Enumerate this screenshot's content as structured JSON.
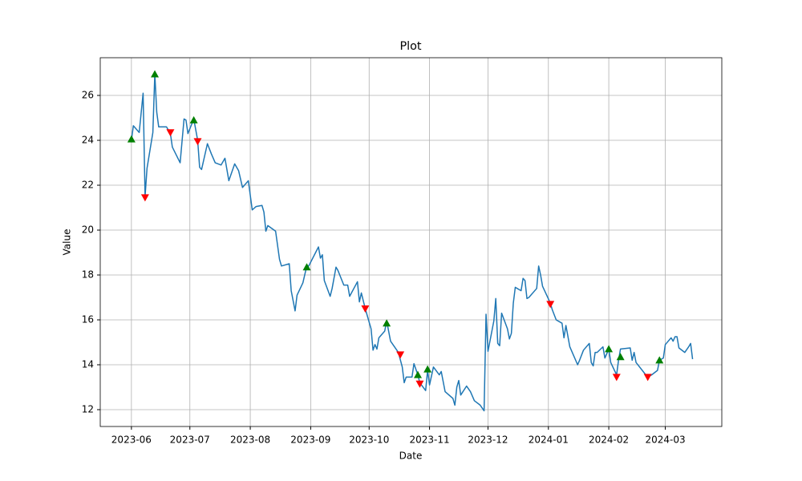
{
  "chart_data": {
    "type": "line",
    "title": "Plot",
    "xlabel": "Date",
    "ylabel": "Value",
    "grid": true,
    "x": [
      "2023-06-01",
      "2023-06-02",
      "2023-06-05",
      "2023-06-07",
      "2023-06-08",
      "2023-06-09",
      "2023-06-12",
      "2023-06-13",
      "2023-06-14",
      "2023-06-15",
      "2023-06-19",
      "2023-06-21",
      "2023-06-22",
      "2023-06-26",
      "2023-06-28",
      "2023-06-29",
      "2023-06-30",
      "2023-07-03",
      "2023-07-05",
      "2023-07-06",
      "2023-07-07",
      "2023-07-10",
      "2023-07-12",
      "2023-07-14",
      "2023-07-17",
      "2023-07-19",
      "2023-07-21",
      "2023-07-24",
      "2023-07-26",
      "2023-07-28",
      "2023-07-31",
      "2023-08-02",
      "2023-08-04",
      "2023-08-07",
      "2023-08-08",
      "2023-08-09",
      "2023-08-10",
      "2023-08-14",
      "2023-08-16",
      "2023-08-17",
      "2023-08-21",
      "2023-08-22",
      "2023-08-24",
      "2023-08-25",
      "2023-08-28",
      "2023-08-30",
      "2023-08-31",
      "2023-09-05",
      "2023-09-06",
      "2023-09-07",
      "2023-09-08",
      "2023-09-11",
      "2023-09-12",
      "2023-09-14",
      "2023-09-15",
      "2023-09-18",
      "2023-09-20",
      "2023-09-21",
      "2023-09-25",
      "2023-09-26",
      "2023-09-27",
      "2023-09-29",
      "2023-10-02",
      "2023-10-03",
      "2023-10-04",
      "2023-10-05",
      "2023-10-06",
      "2023-10-09",
      "2023-10-10",
      "2023-10-12",
      "2023-10-16",
      "2023-10-18",
      "2023-10-19",
      "2023-10-20",
      "2023-10-23",
      "2023-10-24",
      "2023-10-26",
      "2023-10-27",
      "2023-10-30",
      "2023-10-31",
      "2023-11-01",
      "2023-11-03",
      "2023-11-06",
      "2023-11-07",
      "2023-11-09",
      "2023-11-13",
      "2023-11-14",
      "2023-11-15",
      "2023-11-16",
      "2023-11-17",
      "2023-11-20",
      "2023-11-22",
      "2023-11-24",
      "2023-11-27",
      "2023-11-29",
      "2023-11-30",
      "2023-12-01",
      "2023-12-04",
      "2023-12-05",
      "2023-12-06",
      "2023-12-07",
      "2023-12-08",
      "2023-12-11",
      "2023-12-12",
      "2023-12-13",
      "2023-12-14",
      "2023-12-15",
      "2023-12-18",
      "2023-12-19",
      "2023-12-20",
      "2023-12-21",
      "2023-12-22",
      "2023-12-26",
      "2023-12-27",
      "2023-12-28",
      "2023-12-29",
      "2024-01-02",
      "2024-01-03",
      "2024-01-05",
      "2024-01-08",
      "2024-01-09",
      "2024-01-10",
      "2024-01-12",
      "2024-01-16",
      "2024-01-17",
      "2024-01-19",
      "2024-01-22",
      "2024-01-23",
      "2024-01-24",
      "2024-01-25",
      "2024-01-26",
      "2024-01-29",
      "2024-01-30",
      "2024-02-01",
      "2024-02-02",
      "2024-02-05",
      "2024-02-06",
      "2024-02-07",
      "2024-02-12",
      "2024-02-13",
      "2024-02-14",
      "2024-02-15",
      "2024-02-20",
      "2024-02-21",
      "2024-02-23",
      "2024-02-26",
      "2024-02-27",
      "2024-02-29",
      "2024-03-01",
      "2024-03-04",
      "2024-03-05",
      "2024-03-06",
      "2024-03-07",
      "2024-03-08",
      "2024-03-11",
      "2024-03-13",
      "2024-03-14",
      "2024-03-15"
    ],
    "series": [
      {
        "type": "line",
        "color": "#1f77b4",
        "values": [
          24.0,
          24.65,
          24.35,
          26.1,
          21.5,
          22.75,
          24.35,
          26.95,
          25.25,
          24.6,
          24.6,
          24.3,
          23.7,
          23.0,
          24.95,
          24.9,
          24.3,
          24.95,
          24.0,
          22.8,
          22.7,
          23.85,
          23.4,
          23.0,
          22.9,
          23.2,
          22.2,
          22.95,
          22.65,
          21.9,
          22.2,
          20.9,
          21.05,
          21.1,
          20.8,
          19.95,
          20.2,
          19.95,
          18.7,
          18.4,
          18.5,
          17.3,
          16.4,
          17.1,
          17.65,
          18.4,
          18.4,
          19.25,
          18.75,
          18.9,
          17.75,
          17.05,
          17.4,
          18.35,
          18.2,
          17.55,
          17.55,
          17.05,
          17.7,
          16.8,
          17.2,
          16.5,
          15.6,
          14.65,
          14.9,
          14.7,
          15.2,
          15.5,
          15.95,
          15.05,
          14.55,
          13.9,
          13.2,
          13.45,
          13.45,
          14.05,
          13.55,
          13.2,
          12.85,
          13.75,
          13.1,
          13.9,
          13.55,
          13.7,
          12.8,
          12.5,
          12.2,
          13.0,
          13.3,
          12.65,
          13.05,
          12.8,
          12.4,
          12.2,
          11.95,
          16.25,
          14.6,
          15.95,
          16.95,
          14.95,
          14.85,
          16.3,
          15.6,
          15.15,
          15.4,
          16.75,
          17.45,
          17.3,
          17.85,
          17.75,
          16.95,
          17.0,
          17.4,
          18.4,
          18.0,
          17.5,
          16.75,
          16.45,
          16.0,
          15.85,
          15.2,
          15.75,
          14.8,
          14.0,
          14.2,
          14.65,
          14.95,
          14.1,
          13.95,
          14.55,
          14.55,
          14.8,
          14.3,
          14.7,
          14.1,
          13.55,
          14.2,
          14.7,
          14.75,
          14.2,
          14.55,
          14.1,
          13.55,
          13.45,
          13.55,
          13.75,
          14.2,
          14.3,
          14.9,
          15.2,
          15.05,
          15.25,
          15.25,
          14.75,
          14.55,
          14.8,
          14.95,
          14.25
        ]
      },
      {
        "type": "scatter",
        "marker": "triangle-up",
        "color": "green",
        "x": [
          "2023-06-01",
          "2023-06-13",
          "2023-07-03",
          "2023-08-30",
          "2023-10-10",
          "2023-10-26",
          "2023-10-31",
          "2024-02-01",
          "2024-02-07",
          "2024-02-27"
        ],
        "values": [
          24.05,
          26.95,
          24.9,
          18.35,
          15.85,
          13.55,
          13.8,
          14.7,
          14.35,
          14.2
        ]
      },
      {
        "type": "scatter",
        "marker": "triangle-down",
        "color": "red",
        "x": [
          "2023-06-08",
          "2023-06-21",
          "2023-07-05",
          "2023-09-29",
          "2023-10-17",
          "2023-10-27",
          "2024-01-02",
          "2024-02-05",
          "2024-02-21"
        ],
        "values": [
          21.45,
          24.35,
          23.95,
          16.5,
          14.45,
          13.15,
          16.7,
          13.45,
          13.45
        ]
      }
    ],
    "xlim": [
      "2023-05-16",
      "2024-03-30"
    ],
    "xticks": [
      {
        "value": "2023-06-01",
        "label": "2023-06"
      },
      {
        "value": "2023-07-01",
        "label": "2023-07"
      },
      {
        "value": "2023-08-01",
        "label": "2023-08"
      },
      {
        "value": "2023-09-01",
        "label": "2023-09"
      },
      {
        "value": "2023-10-01",
        "label": "2023-10"
      },
      {
        "value": "2023-11-01",
        "label": "2023-11"
      },
      {
        "value": "2023-12-01",
        "label": "2023-12"
      },
      {
        "value": "2024-01-01",
        "label": "2024-01"
      },
      {
        "value": "2024-02-01",
        "label": "2024-02"
      },
      {
        "value": "2024-03-01",
        "label": "2024-03"
      }
    ],
    "ylim": [
      11.25,
      27.68
    ],
    "yticks": [
      12,
      14,
      16,
      18,
      20,
      22,
      24,
      26
    ]
  }
}
